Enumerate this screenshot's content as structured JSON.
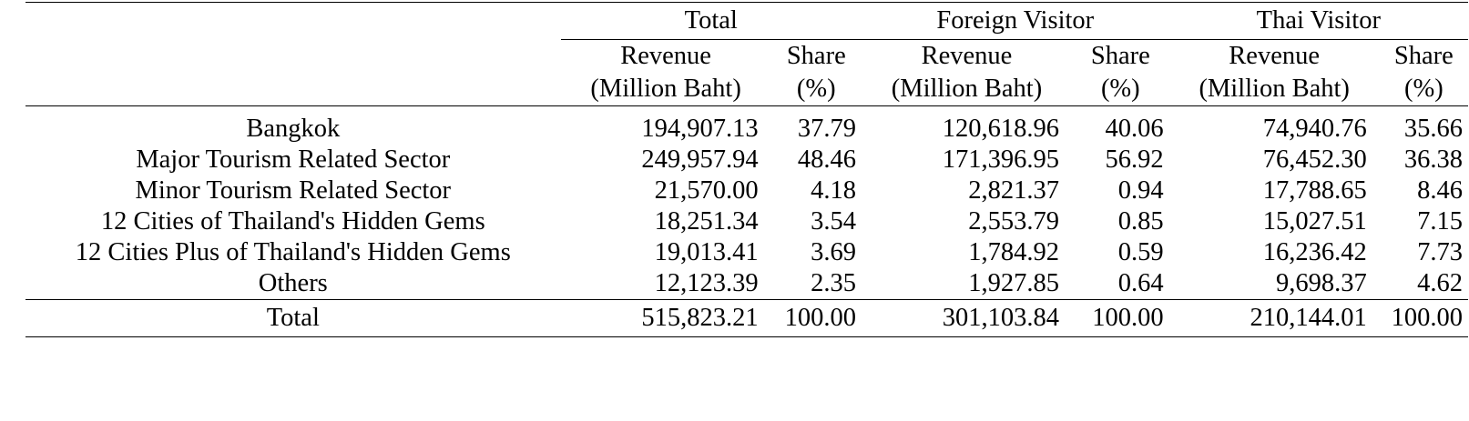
{
  "groups": {
    "total": "Total",
    "foreign": "Foreign Visitor",
    "thai": "Thai Visitor"
  },
  "subheaders": {
    "revenue_line1": "Revenue",
    "revenue_line2": "(Million Baht)",
    "share_line1": "Share",
    "share_line2": "(%)"
  },
  "rows": [
    {
      "label": "Bangkok",
      "total_rev": "194,907.13",
      "total_share": "37.79",
      "foreign_rev": "120,618.96",
      "foreign_share": "40.06",
      "thai_rev": "74,940.76",
      "thai_share": "35.66"
    },
    {
      "label": "Major Tourism Related Sector",
      "total_rev": "249,957.94",
      "total_share": "48.46",
      "foreign_rev": "171,396.95",
      "foreign_share": "56.92",
      "thai_rev": "76,452.30",
      "thai_share": "36.38"
    },
    {
      "label": "Minor Tourism Related Sector",
      "total_rev": "21,570.00",
      "total_share": "4.18",
      "foreign_rev": "2,821.37",
      "foreign_share": "0.94",
      "thai_rev": "17,788.65",
      "thai_share": "8.46"
    },
    {
      "label": "12 Cities of Thailand's Hidden Gems",
      "total_rev": "18,251.34",
      "total_share": "3.54",
      "foreign_rev": "2,553.79",
      "foreign_share": "0.85",
      "thai_rev": "15,027.51",
      "thai_share": "7.15"
    },
    {
      "label": "12 Cities Plus of Thailand's Hidden Gems",
      "total_rev": "19,013.41",
      "total_share": "3.69",
      "foreign_rev": "1,784.92",
      "foreign_share": "0.59",
      "thai_rev": "16,236.42",
      "thai_share": "7.73"
    },
    {
      "label": "Others",
      "total_rev": "12,123.39",
      "total_share": "2.35",
      "foreign_rev": "1,927.85",
      "foreign_share": "0.64",
      "thai_rev": "9,698.37",
      "thai_share": "4.62"
    }
  ],
  "total_row": {
    "label": "Total",
    "total_rev": "515,823.21",
    "total_share": "100.00",
    "foreign_rev": "301,103.84",
    "foreign_share": "100.00",
    "thai_rev": "210,144.01",
    "thai_share": "100.00"
  }
}
